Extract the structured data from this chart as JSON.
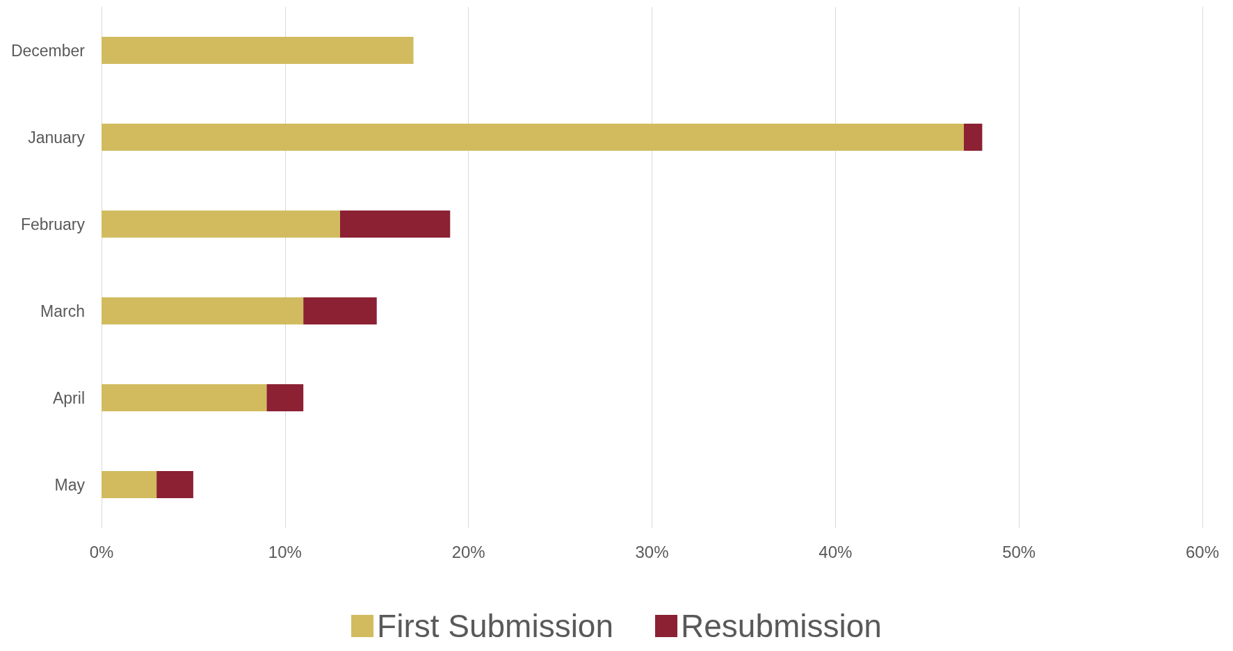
{
  "chart_data": {
    "type": "bar",
    "orientation": "horizontal",
    "stacked": true,
    "categories": [
      "December",
      "January",
      "February",
      "March",
      "April",
      "May"
    ],
    "series": [
      {
        "name": "First Submission",
        "color": "#d1bb5e",
        "values": [
          17,
          47,
          13,
          11,
          9,
          3
        ]
      },
      {
        "name": "Resubmission",
        "color": "#8b2133",
        "values": [
          0,
          1,
          6,
          4,
          2,
          2
        ]
      }
    ],
    "xlim": [
      0,
      60
    ],
    "xticks": [
      {
        "value": 0,
        "label": "0%"
      },
      {
        "value": 10,
        "label": "10%"
      },
      {
        "value": 20,
        "label": "20%"
      },
      {
        "value": 30,
        "label": "30%"
      },
      {
        "value": 40,
        "label": "40%"
      },
      {
        "value": 50,
        "label": "50%"
      },
      {
        "value": 60,
        "label": "60%"
      }
    ],
    "grid": "x",
    "legend": "bottom"
  }
}
